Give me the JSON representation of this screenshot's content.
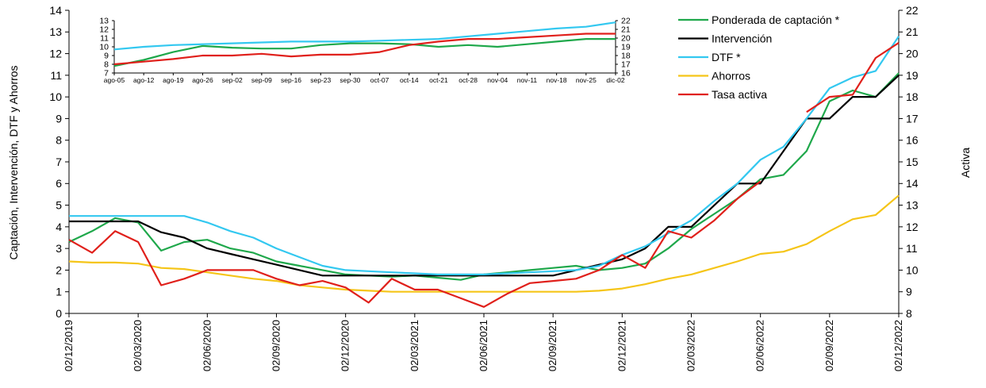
{
  "chart_data": [
    {
      "type": "line",
      "ylabel": "Captación, Intervención,  DTF  y Ahorros",
      "y2label": "Activa",
      "legend": "upper right",
      "categories": [
        "02/12/2019",
        null,
        null,
        "02/03/2020",
        null,
        null,
        "02/06/2020",
        null,
        null,
        "02/09/2020",
        null,
        null,
        "02/12/2020",
        null,
        null,
        "02/03/2021",
        null,
        null,
        "02/06/2021",
        null,
        null,
        "02/09/2021",
        null,
        null,
        "02/12/2021",
        null,
        null,
        "02/03/2022",
        null,
        null,
        "02/06/2022",
        null,
        null,
        "02/09/2022",
        null,
        null,
        "02/12/2022"
      ],
      "ylim": [
        0,
        14
      ],
      "yticks": [
        0,
        1,
        2,
        3,
        4,
        5,
        6,
        7,
        8,
        9,
        10,
        11,
        12,
        13,
        14
      ],
      "y2lim": [
        8,
        22
      ],
      "y2ticks": [
        8,
        9,
        10,
        11,
        12,
        13,
        14,
        15,
        16,
        17,
        18,
        19,
        20,
        21,
        22
      ],
      "series": [
        {
          "name": "Ponderada de captación *",
          "color": "#1fa84b",
          "values": [
            3.3,
            3.8,
            4.4,
            4.2,
            2.9,
            3.3,
            3.4,
            3.0,
            2.8,
            2.4,
            2.2,
            2.0,
            1.8,
            1.75,
            1.7,
            1.75,
            1.65,
            1.55,
            1.8,
            1.9,
            2.0,
            2.1,
            2.2,
            2.0,
            2.1,
            2.3,
            3.0,
            3.9,
            4.6,
            5.3,
            6.2,
            6.4,
            7.5,
            9.8,
            10.3,
            10.0,
            11.1
          ]
        },
        {
          "name": "Intervención",
          "color": "#000000",
          "values": [
            4.25,
            4.25,
            4.25,
            4.25,
            3.75,
            3.5,
            3.0,
            2.75,
            2.5,
            2.25,
            2.0,
            1.75,
            1.75,
            1.75,
            1.75,
            1.75,
            1.75,
            1.75,
            1.75,
            1.75,
            1.75,
            1.75,
            2.0,
            2.25,
            2.5,
            3.0,
            4.0,
            4.0,
            5.0,
            6.0,
            6.0,
            7.5,
            9.0,
            9.0,
            10.0,
            10.0,
            11.0
          ]
        },
        {
          "name": "DTF *",
          "color": "#33c8f0",
          "values": [
            4.5,
            4.5,
            4.5,
            4.5,
            4.5,
            4.5,
            4.2,
            3.8,
            3.5,
            3.0,
            2.6,
            2.2,
            2.0,
            1.95,
            1.9,
            1.85,
            1.8,
            1.8,
            1.8,
            1.85,
            1.9,
            1.95,
            2.0,
            2.2,
            2.7,
            3.1,
            3.7,
            4.3,
            5.2,
            6.0,
            7.1,
            7.7,
            9.0,
            10.4,
            10.9,
            11.2,
            12.8
          ]
        },
        {
          "name": "Ahorros",
          "color": "#f5c518",
          "values": [
            2.4,
            2.35,
            2.35,
            2.3,
            2.1,
            2.05,
            1.9,
            1.75,
            1.6,
            1.5,
            1.3,
            1.2,
            1.1,
            1.05,
            1.0,
            1.0,
            1.0,
            1.0,
            1.0,
            1.0,
            1.0,
            1.0,
            1.0,
            1.05,
            1.15,
            1.35,
            1.6,
            1.8,
            2.1,
            2.4,
            2.75,
            2.85,
            3.2,
            3.8,
            4.35,
            4.55,
            5.45
          ]
        },
        {
          "name": "Tasa activa",
          "color": "#e0201b",
          "axis": "y2",
          "values": [
            11.4,
            10.8,
            11.8,
            11.3,
            9.3,
            9.6,
            10.0,
            10.0,
            10.0,
            9.6,
            9.3,
            9.5,
            9.2,
            8.5,
            9.6,
            9.1,
            9.1,
            8.7,
            8.3,
            8.9,
            9.4,
            9.5,
            9.6,
            10.0,
            10.7,
            10.1,
            11.8,
            11.5,
            12.3,
            13.3,
            14.1,
            null,
            17.3,
            18.0,
            18.1,
            19.8,
            20.5
          ]
        }
      ]
    },
    {
      "type": "line",
      "categories": [
        "ago-05",
        "ago-12",
        "ago-19",
        "ago-26",
        "sep-02",
        "sep-09",
        "sep-16",
        "sep-23",
        "sep-30",
        "oct-07",
        "oct-14",
        "oct-21",
        "oct-28",
        "nov-04",
        "nov-11",
        "nov-18",
        "nov-25",
        "dic-02"
      ],
      "ylim": [
        7,
        13
      ],
      "yticks": [
        7,
        8,
        9,
        10,
        11,
        12,
        13
      ],
      "y2lim": [
        16,
        22
      ],
      "y2ticks": [
        16,
        17,
        18,
        19,
        20,
        21,
        22
      ],
      "series": [
        {
          "color": "#1fa84b",
          "values": [
            7.8,
            8.5,
            9.4,
            10.1,
            9.9,
            9.8,
            9.8,
            10.2,
            10.4,
            10.4,
            10.3,
            10.0,
            10.2,
            10.0,
            10.3,
            10.6,
            10.9,
            10.9
          ]
        },
        {
          "color": "#33c8f0",
          "values": [
            9.7,
            10.0,
            10.2,
            10.3,
            10.4,
            10.5,
            10.6,
            10.6,
            10.6,
            10.7,
            10.8,
            10.9,
            11.2,
            11.5,
            11.8,
            12.1,
            12.3,
            12.8
          ]
        },
        {
          "color": "#e0201b",
          "axis": "y2",
          "values": [
            17.0,
            17.3,
            17.6,
            18.0,
            18.0,
            18.2,
            17.9,
            18.1,
            18.1,
            18.4,
            19.2,
            19.6,
            19.9,
            19.9,
            20.1,
            20.3,
            20.5,
            20.5
          ]
        }
      ]
    }
  ]
}
